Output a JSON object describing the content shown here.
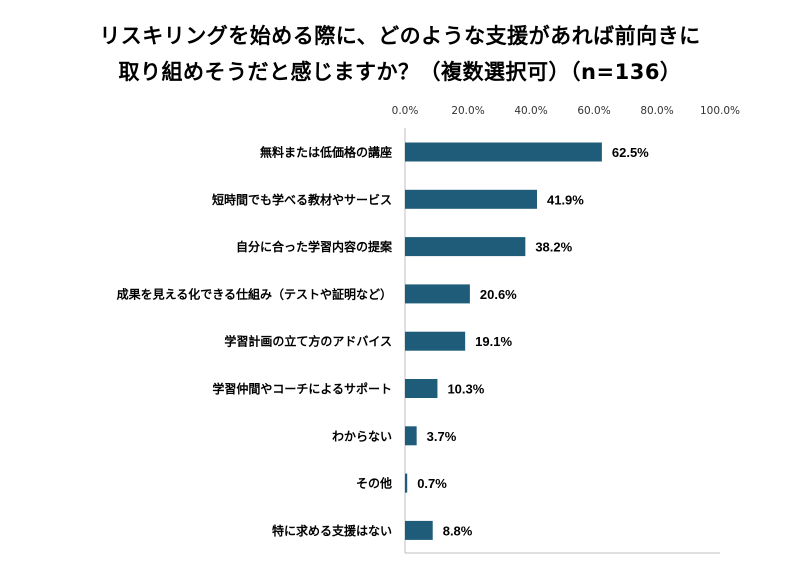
{
  "chart_data": {
    "type": "bar",
    "orientation": "horizontal",
    "title_line1": "リスキリングを始める際に、どのような支援があれば前向きに",
    "title_line2": "取り組めそうだと感じますか？（複数選択可）（n=136）",
    "categories": [
      "無料または低価格の講座",
      "短時間でも学べる教材やサービス",
      "自分に合った学習内容の提案",
      "成果を見える化できる仕組み（テストや証明など）",
      "学習計画の立て方のアドバイス",
      "学習仲間やコーチによるサポート",
      "わからない",
      "その他",
      "特に求める支援はない"
    ],
    "values": [
      62.5,
      41.9,
      38.2,
      20.6,
      19.1,
      10.3,
      3.7,
      0.7,
      8.8
    ],
    "value_labels": [
      "62.5%",
      "41.9%",
      "38.2%",
      "20.6%",
      "19.1%",
      "10.3%",
      "3.7%",
      "0.7%",
      "8.8%"
    ],
    "xlim": [
      0,
      100
    ],
    "ticks": [
      "0.0%",
      "20.0%",
      "40.0%",
      "60.0%",
      "80.0%",
      "100.0%"
    ],
    "tick_values": [
      0,
      20,
      40,
      60,
      80,
      100
    ],
    "bar_color": "#1f5c7a",
    "grid": false,
    "legend": "none"
  }
}
